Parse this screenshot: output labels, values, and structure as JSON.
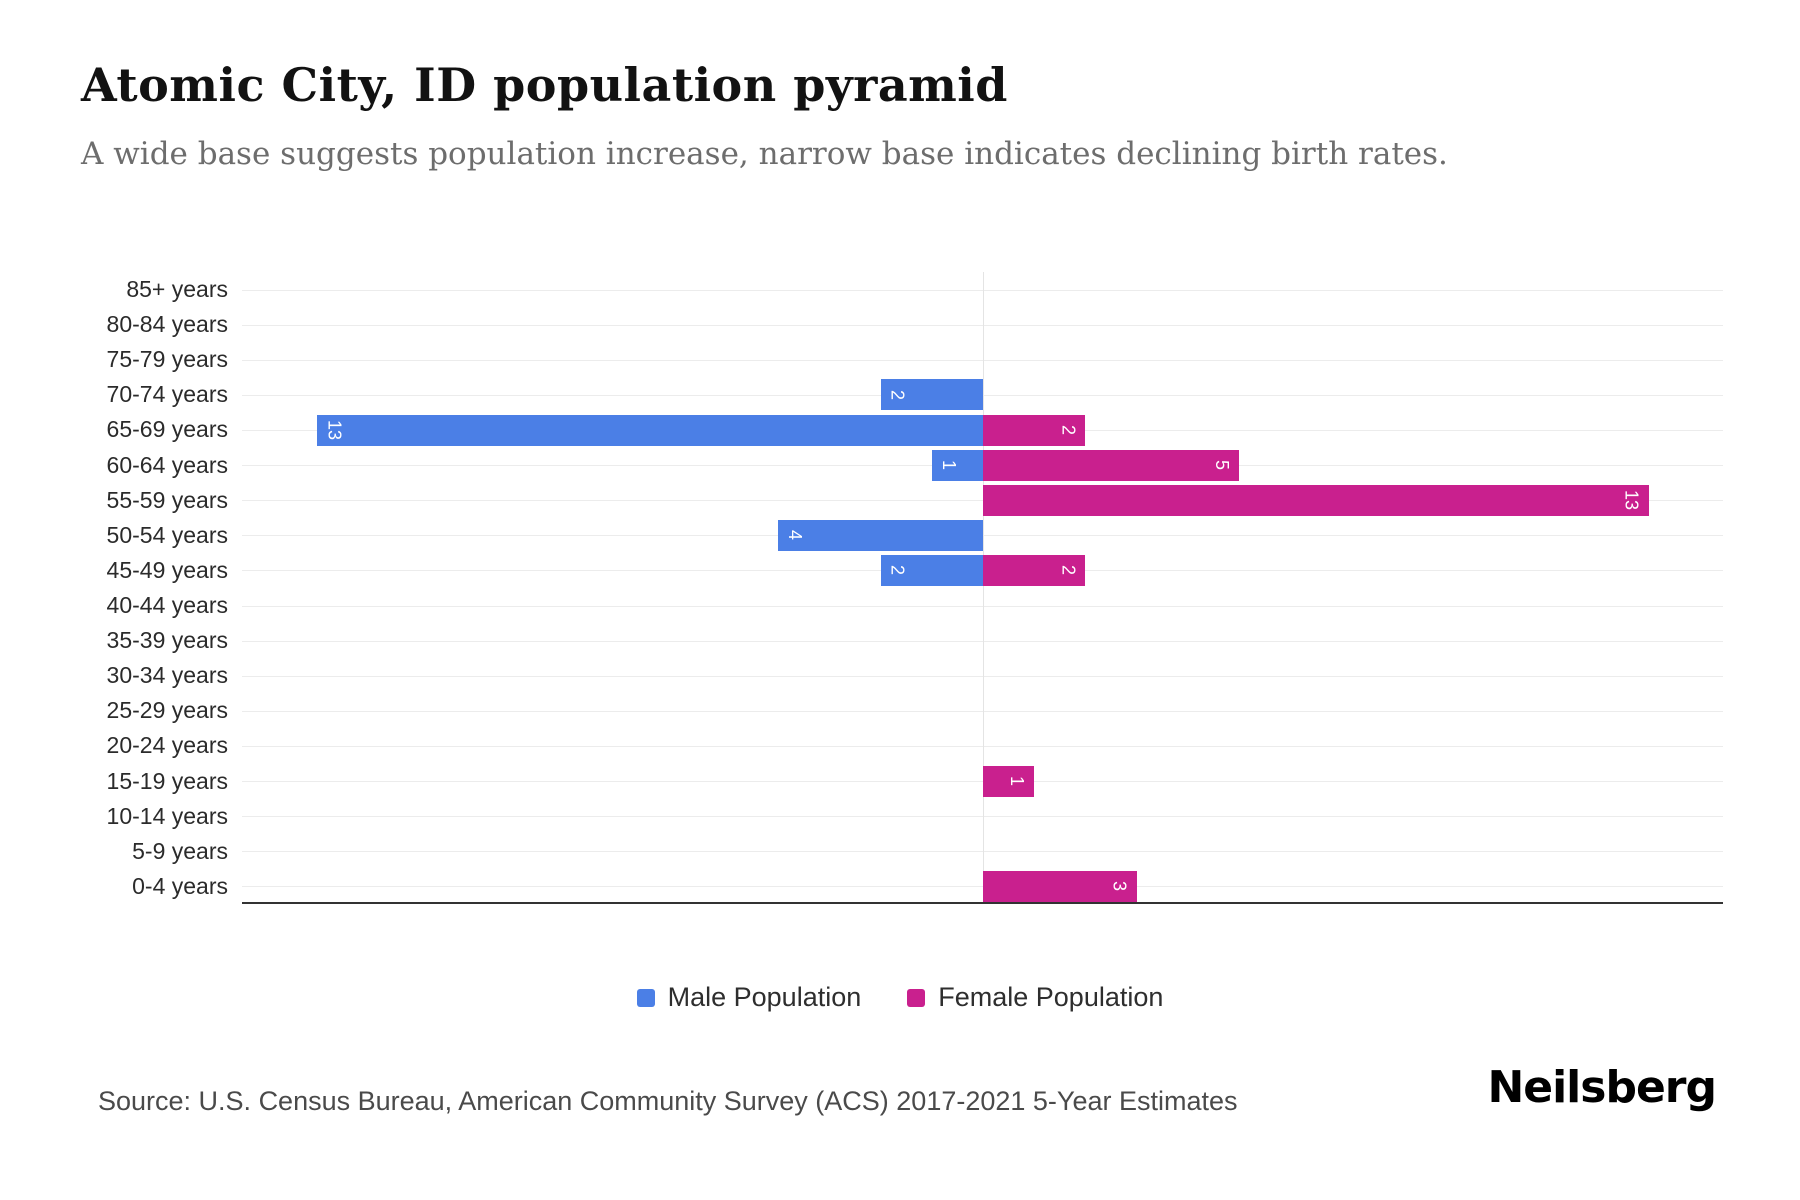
{
  "header": {
    "title": "Atomic City, ID population pyramid",
    "subtitle": "A wide base suggests population increase, narrow base indicates declining birth rates."
  },
  "chart_data": {
    "type": "bar",
    "variant": "population-pyramid",
    "orientation": "horizontal",
    "categories": [
      "85+ years",
      "80-84 years",
      "75-79 years",
      "70-74 years",
      "65-69 years",
      "60-64 years",
      "55-59 years",
      "50-54 years",
      "45-49 years",
      "40-44 years",
      "35-39 years",
      "30-34 years",
      "25-29 years",
      "20-24 years",
      "15-19 years",
      "10-14 years",
      "5-9 years",
      "0-4 years"
    ],
    "series": [
      {
        "name": "Male Population",
        "color": "#4b7fe6",
        "side": "left",
        "values": [
          0,
          0,
          0,
          2,
          13,
          1,
          0,
          4,
          2,
          0,
          0,
          0,
          0,
          0,
          0,
          0,
          0,
          0
        ]
      },
      {
        "name": "Female Population",
        "color": "#c9208e",
        "side": "right",
        "values": [
          0,
          0,
          0,
          0,
          2,
          5,
          13,
          0,
          2,
          0,
          0,
          0,
          0,
          0,
          1,
          0,
          0,
          3
        ]
      }
    ],
    "x_axis": {
      "max_per_side": 14.4,
      "tick_labels_visible": false
    },
    "grid": true,
    "legend_position": "bottom"
  },
  "footer": {
    "source": "Source: U.S. Census Bureau, American Community Survey (ACS) 2017-2021 5-Year Estimates",
    "logo": "Neilsberg"
  }
}
